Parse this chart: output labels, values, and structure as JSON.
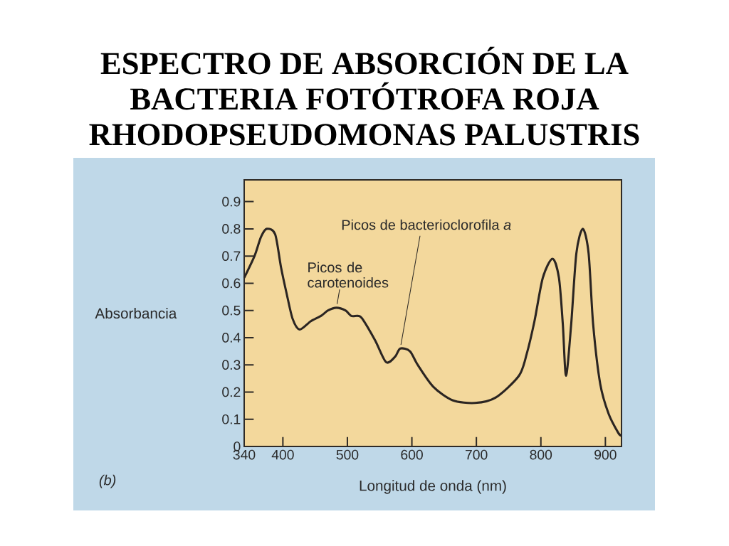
{
  "chart_data": {
    "type": "line",
    "title": "ESPECTRO DE ABSORCIÓN DE LA BACTERIA FOTÓTROFA ROJA RHODOPSEUDOMONAS PALUSTRIS",
    "xlabel": "Longitud de onda (nm)",
    "ylabel": "Absorbancia",
    "x": [
      340,
      356,
      366,
      375,
      388,
      397,
      406,
      415,
      426,
      443,
      459,
      470,
      483,
      497,
      506,
      516,
      523,
      543,
      560,
      574,
      582,
      597,
      609,
      633,
      663,
      698,
      730,
      766,
      778,
      790,
      803,
      818,
      828,
      834,
      839,
      847,
      855,
      865,
      874,
      881,
      892,
      905,
      920,
      925
    ],
    "values": [
      0.62,
      0.7,
      0.77,
      0.8,
      0.78,
      0.66,
      0.56,
      0.47,
      0.43,
      0.46,
      0.48,
      0.5,
      0.51,
      0.5,
      0.48,
      0.48,
      0.47,
      0.39,
      0.31,
      0.33,
      0.36,
      0.35,
      0.3,
      0.22,
      0.17,
      0.16,
      0.18,
      0.26,
      0.34,
      0.46,
      0.62,
      0.69,
      0.62,
      0.45,
      0.26,
      0.45,
      0.71,
      0.8,
      0.71,
      0.45,
      0.23,
      0.12,
      0.05,
      0.04
    ],
    "color": "#2b2522",
    "marker": "none",
    "line_style": "solid",
    "xlim": [
      340,
      925
    ],
    "xticks": [
      340,
      400,
      500,
      600,
      700,
      800,
      900
    ],
    "ylim": [
      0,
      0.98
    ],
    "yticks": [
      0,
      0.1,
      0.2,
      0.3,
      0.4,
      0.5,
      0.6,
      0.7,
      0.8,
      0.9
    ],
    "annotations": [
      {
        "text": "Picos de bacterioclorofila *a*",
        "x": 582,
        "y": 0.36
      },
      {
        "text": "Picos de carotenoides",
        "x": 483,
        "y": 0.51
      },
      "(b)"
    ]
  }
}
